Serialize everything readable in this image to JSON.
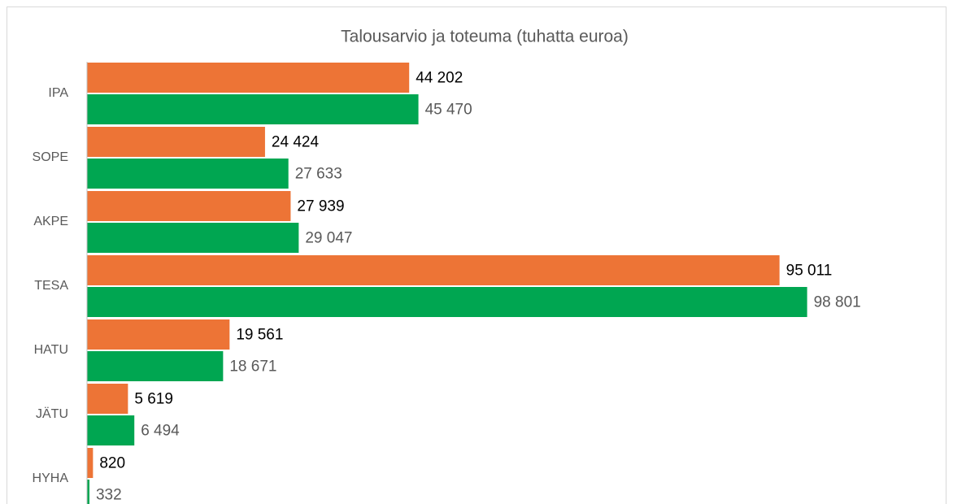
{
  "chart_data": {
    "type": "bar",
    "orientation": "horizontal",
    "title": "Talousarvio ja toteuma (tuhatta euroa)",
    "categories": [
      "IPA",
      "SOPE",
      "AKPE",
      "TESA",
      "HATU",
      "JÄTU",
      "HYHA"
    ],
    "series": [
      {
        "color": "#ed7436",
        "values": [
          44202,
          24424,
          27939,
          95011,
          19561,
          5619,
          820
        ],
        "value_labels": [
          "44 202",
          "24 424",
          "27 939",
          "95 011",
          "19 561",
          "5 619",
          "820"
        ]
      },
      {
        "color": "#00a651",
        "values": [
          45470,
          27633,
          29047,
          98801,
          18671,
          6494,
          332
        ],
        "value_labels": [
          "45 470",
          "27 633",
          "29 047",
          "98 801",
          "18 671",
          "6 494",
          "332"
        ]
      }
    ],
    "xlim": [
      0,
      110000
    ]
  }
}
